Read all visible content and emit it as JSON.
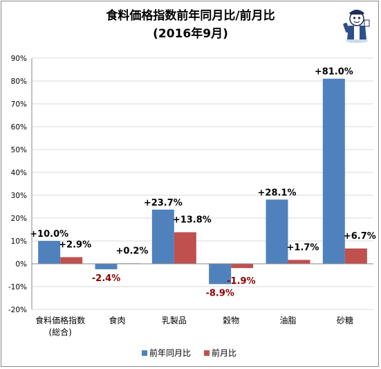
{
  "chart_data": {
    "type": "bar",
    "title": "食料価格指数前年同月比/前月比",
    "subtitle": "(2016年9月)",
    "categories": [
      "食料価格指数\n(総合)",
      "食肉",
      "乳製品",
      "穀物",
      "油脂",
      "砂糖"
    ],
    "series": [
      {
        "name": "前年同月比",
        "values": [
          10.0,
          -2.4,
          23.7,
          -8.9,
          28.1,
          81.0
        ],
        "labels": [
          "+10.0%",
          "-2.4%",
          "+23.7%",
          "-8.9%",
          "+28.1%",
          "+81.0%"
        ]
      },
      {
        "name": "前月比",
        "values": [
          2.9,
          0.2,
          13.8,
          -1.9,
          1.7,
          6.7
        ],
        "labels": [
          "+2.9%",
          "+0.2%",
          "+13.8%",
          "-1.9%",
          "+1.7%",
          "+6.7%"
        ]
      }
    ],
    "yticks": [
      "90%",
      "80%",
      "70%",
      "60%",
      "50%",
      "40%",
      "30%",
      "20%",
      "10%",
      "0%",
      "-10%",
      "-20%"
    ],
    "ylim": [
      -20,
      90
    ],
    "grid": true,
    "legend": "bottom",
    "colors": {
      "series1": "#4f81bd",
      "series2": "#c0504d",
      "negative_label": "#8b0000",
      "grid": "#d9d9d9"
    }
  }
}
